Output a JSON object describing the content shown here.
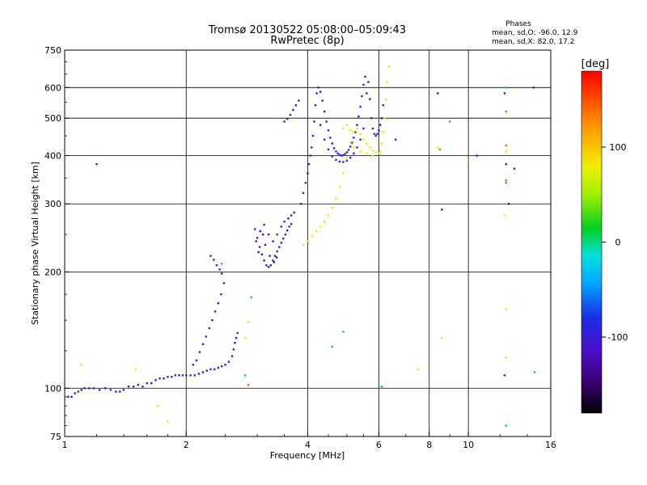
{
  "chart_data": {
    "type": "scatter",
    "title": "Tromsø 20130522 05:08:00–05:09:43",
    "subtitle": "RwPretec (8p)",
    "xlabel": "Frequency [MHz]",
    "ylabel": "Stationary phase Virtual Height [km]",
    "x_scale": "log",
    "y_scale": "log",
    "xlim": [
      1,
      16
    ],
    "ylim": [
      75,
      750
    ],
    "x_ticks": [
      1,
      2,
      4,
      6,
      8,
      10,
      16
    ],
    "x_tick_labels": [
      "1",
      "2",
      "4",
      "6",
      "8",
      "10",
      "16"
    ],
    "y_ticks": [
      75,
      100,
      200,
      300,
      400,
      500,
      600,
      750
    ],
    "y_tick_labels": [
      "75",
      "100",
      "200",
      "300",
      "400",
      "500",
      "600",
      "750"
    ],
    "grid": true,
    "phases_box": {
      "title": "Phases",
      "line_o": "mean, sd,O: -96.0, 12.9",
      "line_x": "mean, sd,X:  82.0, 17.2"
    },
    "colorbar": {
      "label": "[deg]",
      "range": [
        -180,
        180
      ],
      "ticks": [
        100,
        0,
        -100
      ],
      "tick_labels": [
        "100",
        "0",
        "-100"
      ]
    },
    "colors": {
      "o_trace": "#1a2ee6",
      "x_trace": "#e6e61a",
      "deep": "#8a1ad0",
      "axis": "#000000"
    },
    "series": [
      {
        "phase": -96,
        "points": [
          [
            1.02,
            95
          ],
          [
            1.04,
            95
          ],
          [
            1.06,
            97
          ],
          [
            1.08,
            98
          ],
          [
            1.1,
            99
          ],
          [
            1.12,
            100
          ],
          [
            1.15,
            100
          ],
          [
            1.18,
            100
          ],
          [
            1.22,
            99
          ],
          [
            1.26,
            100
          ],
          [
            1.3,
            99
          ],
          [
            1.34,
            98
          ],
          [
            1.37,
            98
          ],
          [
            1.4,
            99
          ],
          [
            1.44,
            101
          ],
          [
            1.48,
            101
          ],
          [
            1.52,
            102
          ],
          [
            1.56,
            101
          ],
          [
            1.6,
            103
          ],
          [
            1.64,
            103
          ],
          [
            1.68,
            105
          ],
          [
            1.72,
            106
          ],
          [
            1.76,
            106
          ],
          [
            1.8,
            107
          ],
          [
            1.84,
            107
          ],
          [
            1.88,
            108
          ],
          [
            1.92,
            108
          ],
          [
            1.96,
            108
          ],
          [
            2.0,
            108
          ],
          [
            2.05,
            108
          ],
          [
            2.1,
            108
          ],
          [
            2.15,
            109
          ],
          [
            2.2,
            110
          ],
          [
            2.25,
            111
          ],
          [
            2.3,
            112
          ],
          [
            2.35,
            112
          ],
          [
            2.4,
            113
          ],
          [
            2.45,
            114
          ],
          [
            2.5,
            115
          ],
          [
            2.55,
            117
          ],
          [
            2.6,
            121
          ],
          [
            2.62,
            126
          ],
          [
            2.64,
            131
          ],
          [
            2.66,
            135
          ],
          [
            2.68,
            139
          ],
          [
            2.08,
            115
          ],
          [
            2.12,
            118
          ],
          [
            2.16,
            124
          ],
          [
            2.2,
            130
          ],
          [
            2.24,
            136
          ],
          [
            2.28,
            143
          ],
          [
            2.32,
            150
          ],
          [
            2.36,
            158
          ],
          [
            2.4,
            166
          ],
          [
            2.44,
            175
          ],
          [
            2.48,
            187
          ],
          [
            2.3,
            220
          ],
          [
            2.34,
            215
          ],
          [
            2.38,
            208
          ],
          [
            2.42,
            203
          ],
          [
            2.45,
            198
          ],
          [
            2.96,
            258
          ],
          [
            3.0,
            245
          ],
          [
            3.04,
            232
          ],
          [
            3.08,
            222
          ],
          [
            3.12,
            214
          ],
          [
            3.16,
            208
          ],
          [
            3.2,
            206
          ],
          [
            3.24,
            208
          ],
          [
            3.28,
            214
          ],
          [
            3.32,
            220
          ],
          [
            3.36,
            226
          ],
          [
            3.4,
            232
          ],
          [
            3.44,
            238
          ],
          [
            3.48,
            244
          ],
          [
            3.52,
            250
          ],
          [
            3.56,
            256
          ],
          [
            3.6,
            262
          ],
          [
            3.64,
            266
          ],
          [
            2.98,
            240
          ],
          [
            3.05,
            255
          ],
          [
            3.12,
            265
          ],
          [
            3.2,
            250
          ],
          [
            3.28,
            240
          ],
          [
            3.36,
            250
          ],
          [
            3.44,
            262
          ],
          [
            3.5,
            270
          ],
          [
            3.58,
            275
          ],
          [
            3.64,
            280
          ],
          [
            3.7,
            285
          ],
          [
            3.5,
            490
          ],
          [
            3.56,
            498
          ],
          [
            3.62,
            510
          ],
          [
            3.68,
            525
          ],
          [
            3.74,
            540
          ],
          [
            3.8,
            555
          ],
          [
            3.85,
            300
          ],
          [
            3.9,
            320
          ],
          [
            3.95,
            340
          ],
          [
            4.0,
            360
          ],
          [
            4.03,
            380
          ],
          [
            4.06,
            400
          ],
          [
            4.09,
            420
          ],
          [
            4.12,
            450
          ],
          [
            4.15,
            490
          ],
          [
            4.18,
            540
          ],
          [
            4.21,
            580
          ],
          [
            4.25,
            600
          ],
          [
            4.3,
            585
          ],
          [
            4.35,
            555
          ],
          [
            4.4,
            520
          ],
          [
            4.45,
            490
          ],
          [
            4.5,
            465
          ],
          [
            4.55,
            445
          ],
          [
            4.6,
            430
          ],
          [
            4.65,
            418
          ],
          [
            4.7,
            410
          ],
          [
            4.75,
            405
          ],
          [
            4.8,
            402
          ],
          [
            4.85,
            400
          ],
          [
            4.9,
            401
          ],
          [
            4.95,
            404
          ],
          [
            5.0,
            408
          ],
          [
            5.05,
            414
          ],
          [
            5.1,
            422
          ],
          [
            5.15,
            432
          ],
          [
            5.2,
            445
          ],
          [
            5.25,
            460
          ],
          [
            5.3,
            480
          ],
          [
            5.35,
            505
          ],
          [
            5.4,
            535
          ],
          [
            5.45,
            570
          ],
          [
            5.5,
            610
          ],
          [
            5.55,
            640
          ],
          [
            4.3,
            480
          ],
          [
            4.4,
            440
          ],
          [
            4.5,
            415
          ],
          [
            4.6,
            398
          ],
          [
            4.7,
            390
          ],
          [
            4.8,
            386
          ],
          [
            4.9,
            385
          ],
          [
            5.0,
            388
          ],
          [
            5.1,
            395
          ],
          [
            5.2,
            405
          ],
          [
            5.3,
            420
          ],
          [
            5.4,
            440
          ],
          [
            5.5,
            470
          ],
          [
            5.6,
            580
          ],
          [
            5.65,
            620
          ],
          [
            5.7,
            560
          ],
          [
            5.75,
            500
          ],
          [
            5.8,
            470
          ],
          [
            5.85,
            455
          ],
          [
            5.9,
            450
          ],
          [
            5.95,
            455
          ],
          [
            6.0,
            465
          ],
          [
            6.05,
            480
          ],
          [
            6.1,
            500
          ],
          [
            6.15,
            540
          ],
          [
            1.2,
            380
          ],
          [
            6.6,
            440
          ],
          [
            8.4,
            580
          ],
          [
            8.6,
            290
          ],
          [
            10.5,
            400
          ],
          [
            12.3,
            580
          ],
          [
            12.4,
            380
          ],
          [
            12.6,
            300
          ],
          [
            13.0,
            370
          ],
          [
            14.5,
            600
          ],
          [
            12.3,
            108
          ]
        ]
      },
      {
        "phase": 82,
        "points": [
          [
            3.9,
            235
          ],
          [
            4.0,
            240
          ],
          [
            4.1,
            248
          ],
          [
            4.2,
            255
          ],
          [
            4.3,
            262
          ],
          [
            4.4,
            270
          ],
          [
            4.5,
            280
          ],
          [
            4.6,
            293
          ],
          [
            4.7,
            310
          ],
          [
            4.8,
            332
          ],
          [
            4.9,
            360
          ],
          [
            5.0,
            395
          ],
          [
            5.1,
            430
          ],
          [
            5.2,
            460
          ],
          [
            5.3,
            470
          ],
          [
            5.4,
            455
          ],
          [
            5.5,
            440
          ],
          [
            5.6,
            430
          ],
          [
            5.7,
            420
          ],
          [
            5.8,
            412
          ],
          [
            5.9,
            408
          ],
          [
            6.0,
            406
          ],
          [
            6.05,
            410
          ],
          [
            6.1,
            430
          ],
          [
            6.15,
            460
          ],
          [
            6.2,
            500
          ],
          [
            6.25,
            560
          ],
          [
            6.3,
            620
          ],
          [
            6.35,
            680
          ],
          [
            5.2,
            420
          ],
          [
            5.4,
            410
          ],
          [
            5.6,
            405
          ],
          [
            5.8,
            400
          ],
          [
            4.9,
            470
          ],
          [
            5.0,
            480
          ],
          [
            5.1,
            465
          ],
          [
            1.1,
            115
          ],
          [
            1.5,
            112
          ],
          [
            1.7,
            90
          ],
          [
            1.8,
            82
          ],
          [
            2.8,
            135
          ],
          [
            2.85,
            148
          ],
          [
            7.5,
            112
          ],
          [
            8.4,
            420
          ],
          [
            8.6,
            135
          ],
          [
            12.3,
            280
          ],
          [
            12.4,
            160
          ],
          [
            12.4,
            410
          ],
          [
            12.4,
            120
          ]
        ]
      },
      {
        "phase": 20,
        "points": [
          [
            9.0,
            490
          ],
          [
            2.9,
            172
          ]
        ]
      },
      {
        "phase": -35,
        "points": [
          [
            2.45,
            210
          ],
          [
            2.8,
            108
          ],
          [
            4.9,
            140
          ],
          [
            4.6,
            128
          ],
          [
            6.1,
            101
          ],
          [
            12.4,
            80
          ],
          [
            12.4,
            340
          ],
          [
            12.4,
            600
          ],
          [
            14.6,
            110
          ]
        ]
      },
      {
        "phase": -125,
        "points": [
          [
            3.1,
            250
          ],
          [
            3.14,
            235
          ],
          [
            3.22,
            220
          ],
          [
            3.3,
            212
          ],
          [
            3.35,
            218
          ],
          [
            3.02,
            225
          ]
        ]
      },
      {
        "phase": 140,
        "points": [
          [
            8.5,
            415
          ],
          [
            12.4,
            520
          ],
          [
            12.4,
            425
          ],
          [
            12.4,
            345
          ],
          [
            2.85,
            102
          ]
        ]
      }
    ]
  }
}
